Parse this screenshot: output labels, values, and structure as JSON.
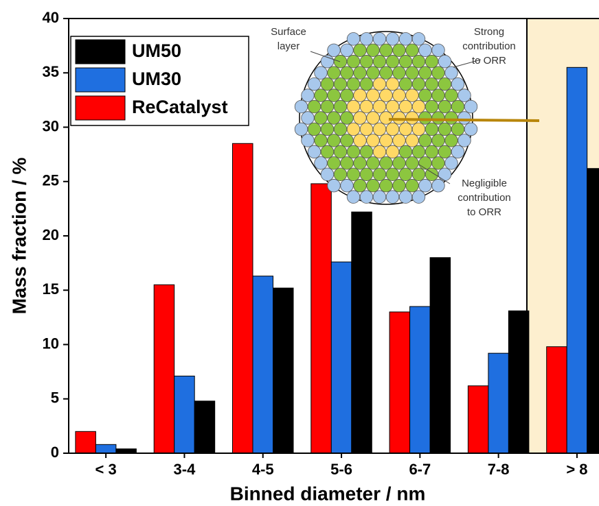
{
  "chart_data": {
    "type": "bar",
    "x_label": "Binned diameter / nm",
    "y_label": "Mass fraction / %",
    "categories": [
      "< 3",
      "3-4",
      "4-5",
      "5-6",
      "6-7",
      "7-8",
      "> 8"
    ],
    "series": [
      {
        "name": "ReCatalyst",
        "color": "#ff0000",
        "values": [
          2.0,
          15.5,
          28.5,
          24.8,
          13.0,
          6.2,
          9.8
        ]
      },
      {
        "name": "UM30",
        "color": "#1f6fe0",
        "values": [
          0.8,
          7.1,
          16.3,
          17.6,
          13.5,
          9.2,
          35.5
        ]
      },
      {
        "name": "UM50",
        "color": "#000000",
        "values": [
          0.4,
          4.8,
          15.2,
          22.2,
          18.0,
          13.1,
          26.2
        ]
      }
    ],
    "ylim": [
      0,
      40
    ],
    "yticks": [
      0,
      5,
      10,
      15,
      20,
      25,
      30,
      35,
      40
    ],
    "legend": "upper left",
    "annotations": {
      "surface": [
        "Surface",
        "layer"
      ],
      "strong": [
        "Strong",
        "contribution",
        "to ORR"
      ],
      "negligible": [
        "Negligible",
        "contribution",
        "to ORR"
      ]
    }
  }
}
